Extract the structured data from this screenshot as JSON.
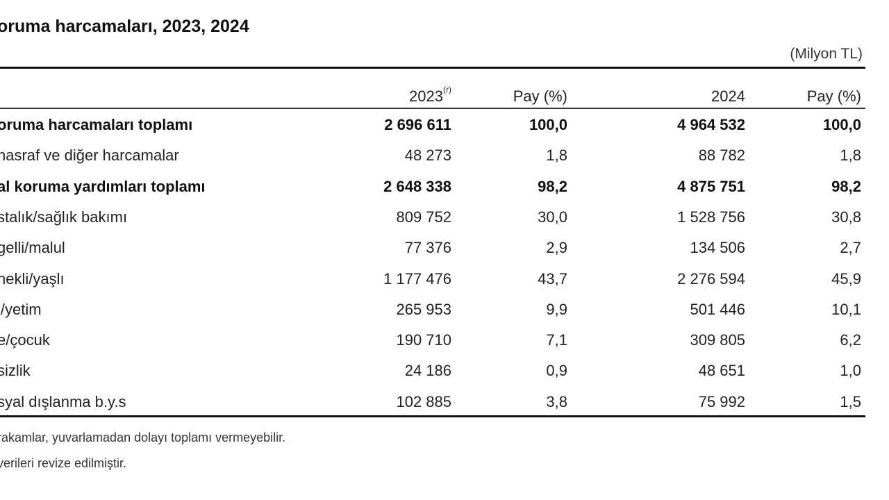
{
  "title": "oruma harcamaları, 2023, 2024",
  "unit": "(Milyon TL)",
  "columns": {
    "y2023": "2023",
    "y2023_sup": "(r)",
    "pay1": "Pay (%)",
    "y2024": "2024",
    "pay2": "Pay (%)"
  },
  "rows": [
    {
      "label": "oruma harcamaları toplamı",
      "v2023": "2 696 611",
      "p2023": "100,0",
      "v2024": "4 964 532",
      "p2024": "100,0",
      "bold": true
    },
    {
      "label": "nasraf ve diğer harcamalar",
      "v2023": "48 273",
      "p2023": "1,8",
      "v2024": "88 782",
      "p2024": "1,8",
      "bold": false
    },
    {
      "label": "al koruma yardımları toplamı",
      "v2023": "2 648 338",
      "p2023": "98,2",
      "v2024": "4 875 751",
      "p2024": "98,2",
      "bold": true
    },
    {
      "label": "stalık/sağlık bakımı",
      "v2023": "809 752",
      "p2023": "30,0",
      "v2024": "1 528 756",
      "p2024": "30,8",
      "bold": false
    },
    {
      "label": "gelli/malul",
      "v2023": "77 376",
      "p2023": "2,9",
      "v2024": "134 506",
      "p2024": "2,7",
      "bold": false
    },
    {
      "label": "nekli/yaşlı",
      "v2023": "1 177 476",
      "p2023": "43,7",
      "v2024": "2 276 594",
      "p2024": "45,9",
      "bold": false
    },
    {
      "label": "l/yetim",
      "v2023": "265 953",
      "p2023": "9,9",
      "v2024": "501 446",
      "p2024": "10,1",
      "bold": false
    },
    {
      "label": "e/çocuk",
      "v2023": "190 710",
      "p2023": "7,1",
      "v2024": "309 805",
      "p2024": "6,2",
      "bold": false
    },
    {
      "label": "sizlik",
      "v2023": "24 186",
      "p2023": "0,9",
      "v2024": "48 651",
      "p2024": "1,0",
      "bold": false
    },
    {
      "label": "syal dışlanma b.y.s",
      "v2023": "102 885",
      "p2023": "3,8",
      "v2024": "75 992",
      "p2024": "1,5",
      "bold": false
    }
  ],
  "notes": [
    "rakamlar, yuvarlamadan dolayı toplamı vermeyebilir.",
    "verileri revize edilmiştir."
  ]
}
